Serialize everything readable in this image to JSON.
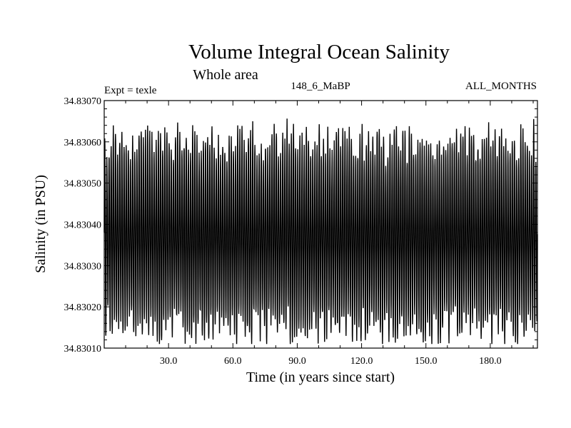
{
  "chart_data": {
    "type": "line",
    "title": "Volume Integral Ocean Salinity",
    "subtitle": "Whole area",
    "annotations": {
      "left": "Expt = texle",
      "center": "148_6_MaBP",
      "right": "ALL_MONTHS"
    },
    "xlabel": "Time (in years since start)",
    "ylabel": "Salinity (in PSU)",
    "xlim": [
      0,
      202
    ],
    "ylim": [
      34.8301,
      34.8307
    ],
    "xticks": [
      30,
      60,
      90,
      120,
      150,
      180
    ],
    "xtick_labels": [
      "30.0",
      "60.0",
      "90.0",
      "120.0",
      "150.0",
      "180.0"
    ],
    "yticks": [
      34.8301,
      34.8302,
      34.8303,
      34.8304,
      34.8305,
      34.8306,
      34.8307
    ],
    "ytick_labels": [
      "34.83010",
      "34.83020",
      "34.83030",
      "34.83040",
      "34.83050",
      "34.83060",
      "34.83070"
    ],
    "series": [
      {
        "name": "Salinity",
        "color": "#000000",
        "sampling": "monthly",
        "mean": 34.83037,
        "seasonal_amplitude": 0.0002,
        "typical_max": 34.8306,
        "typical_min": 34.83015,
        "observed_max": 34.83066,
        "observed_min": 34.83011
      }
    ]
  }
}
